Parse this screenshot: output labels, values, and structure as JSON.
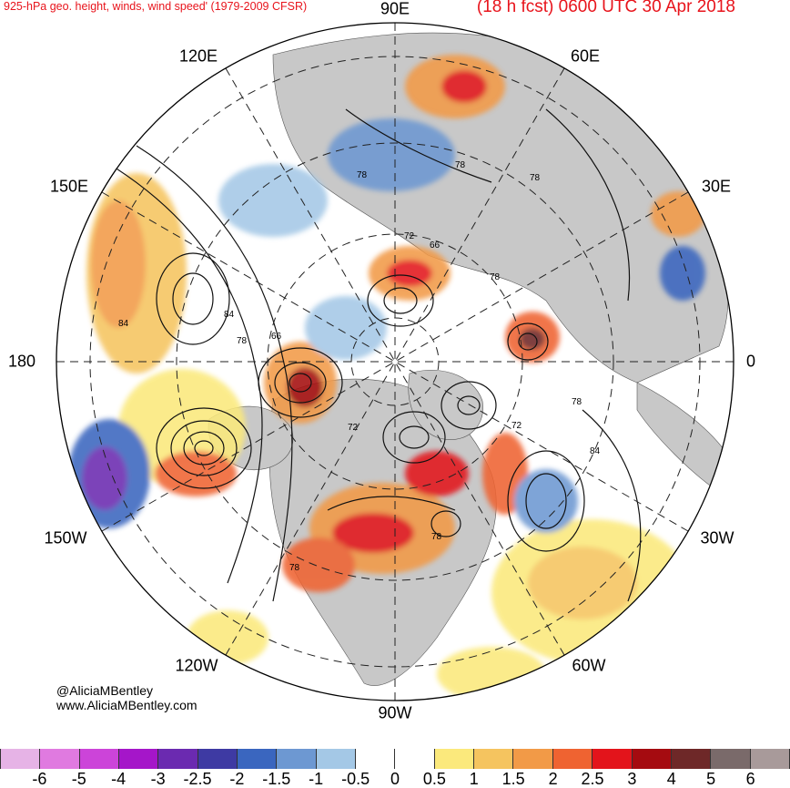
{
  "title": {
    "left": "925-hPa geo. height, winds, wind speed' (1979-2009 CFSR)",
    "right": "(18 h fcst) 0600 UTC 30 Apr 2018"
  },
  "longitude_labels": {
    "e90": "90E",
    "e60": "60E",
    "e120": "120E",
    "e150": "150E",
    "e30": "30E",
    "zero": "0",
    "w180": "180",
    "w150": "150W",
    "w30": "30W",
    "w120": "120W",
    "w60": "60W",
    "w90": "90W"
  },
  "contour_labels": [
    "78",
    "78",
    "72",
    "66",
    "78",
    "84",
    "84",
    "78",
    "66",
    "72",
    "72",
    "84",
    "78",
    "78",
    "78",
    "78"
  ],
  "credits": {
    "handle": "@AliciaMBentley",
    "website": "www.AliciaMBentley.com"
  },
  "colorbar": {
    "ticks": [
      "-6",
      "-5",
      "-4",
      "-3",
      "-2.5",
      "-2",
      "-1.5",
      "-1",
      "-0.5",
      "0",
      "0.5",
      "1",
      "1.5",
      "2",
      "2.5",
      "3",
      "4",
      "5",
      "6"
    ],
    "colors": [
      "#e6b3e6",
      "#e07ae0",
      "#cc44d9",
      "#a516c9",
      "#6b2ab0",
      "#3e3aa3",
      "#3a66bf",
      "#6d98d2",
      "#a4c8e6",
      "#ffffff",
      "#ffffff",
      "#fbe97c",
      "#f5c45f",
      "#f29a47",
      "#ef6331",
      "#e3141b",
      "#a50b10",
      "#6e2828",
      "#7a6a6a",
      "#a89a9a"
    ]
  },
  "colors": {
    "title": "#e8141c",
    "land": "#c8c8c8"
  }
}
